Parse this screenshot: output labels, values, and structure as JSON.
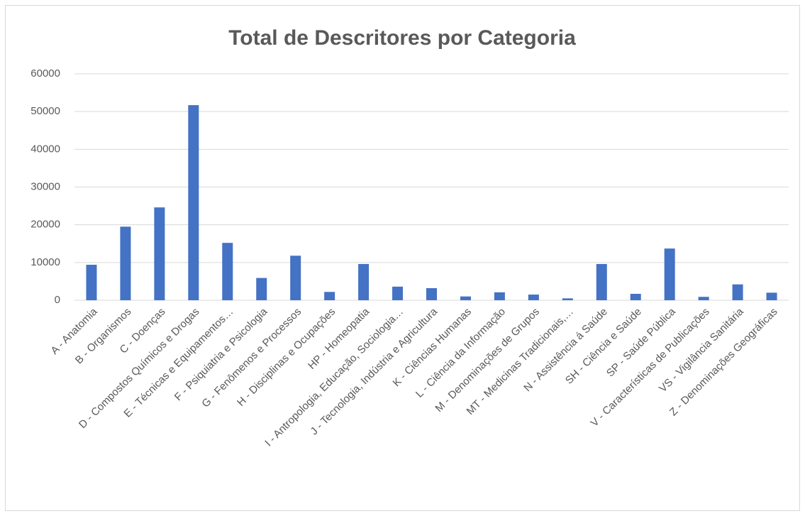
{
  "chart_data": {
    "type": "bar",
    "title": "Total de Descritores por Categoria",
    "categories": [
      "A - Anatomia",
      "B - Organismos",
      "C - Doenças",
      "D - Compostos Químicos e Drogas",
      "E - Técnicas e Equipamentos…",
      "F - Psiquiatria e Psicologia",
      "G - Fenômenos e Processos",
      "H - Disciplinas e Ocupações",
      "HP - Homeopatia",
      "I - Antropologia, Educação, Sociologia…",
      "J - Tecnologia, Indústria e Agricultura",
      "K - Ciências Humanas",
      "L - Ciência da Informação",
      "M - Denominações de Grupos",
      "MT - Medicinas Tradicionais,…",
      "N - Assistência á Saúde",
      "SH - Ciência e Saúde",
      "SP - Saúde Pública",
      "V - Características de Publicações",
      "VS - Vigilância Sanitária",
      "Z - Denominações Geográficas"
    ],
    "values": [
      9400,
      19500,
      24600,
      51700,
      15200,
      5900,
      11800,
      2200,
      9600,
      3600,
      3200,
      1000,
      2100,
      1500,
      500,
      9600,
      1700,
      13700,
      900,
      4200,
      2000
    ],
    "color": "#4472c4",
    "ylim": [
      0,
      60000
    ],
    "yticks": [
      0,
      10000,
      20000,
      30000,
      40000,
      50000,
      60000
    ],
    "grid": true
  }
}
